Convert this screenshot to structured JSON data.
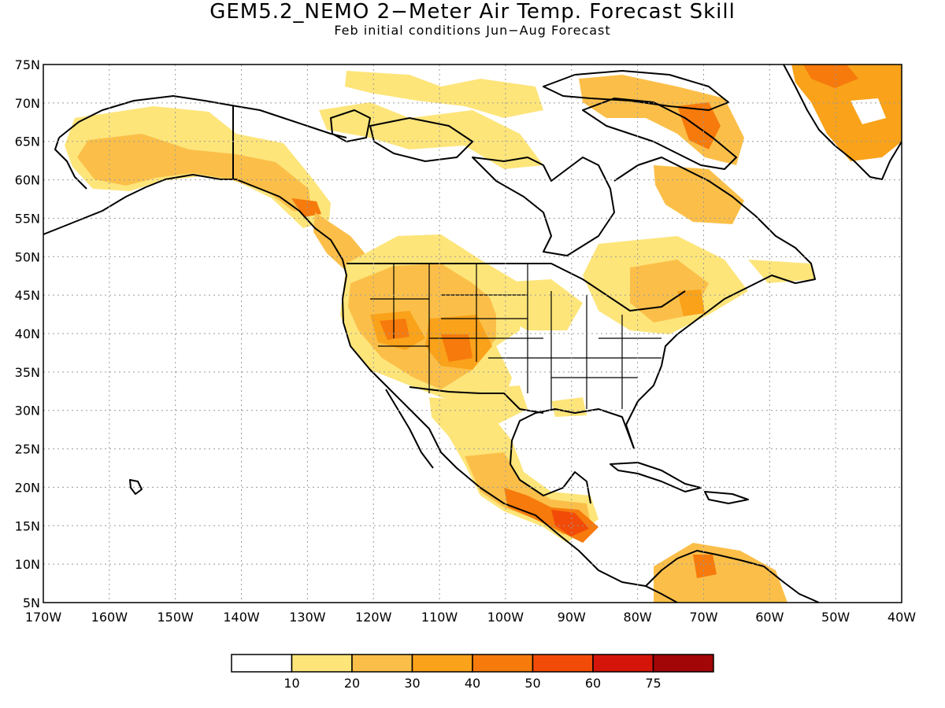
{
  "title": "GEM5.2_NEMO 2−Meter Air Temp. Forecast Skill",
  "subtitle": "Feb initial conditions  Jun−Aug Forecast",
  "map": {
    "lon_range": [
      -170,
      -40
    ],
    "lat_range": [
      5,
      75
    ],
    "lat_ticks": [
      "75N",
      "70N",
      "65N",
      "60N",
      "55N",
      "50N",
      "45N",
      "40N",
      "35N",
      "30N",
      "25N",
      "20N",
      "15N",
      "10N",
      "5N"
    ],
    "lon_ticks": [
      "170W",
      "160W",
      "150W",
      "140W",
      "130W",
      "120W",
      "110W",
      "100W",
      "90W",
      "80W",
      "70W",
      "60W",
      "50W",
      "40W"
    ],
    "grid": "dotted",
    "colorbar_levels": [
      "10",
      "20",
      "30",
      "40",
      "50",
      "60",
      "75"
    ],
    "colorbar_colors": [
      "#ffffff",
      "#fde57a",
      "#fbbf49",
      "#f9a21a",
      "#f67a0c",
      "#f24b08",
      "#d5150a",
      "#a30606"
    ]
  }
}
